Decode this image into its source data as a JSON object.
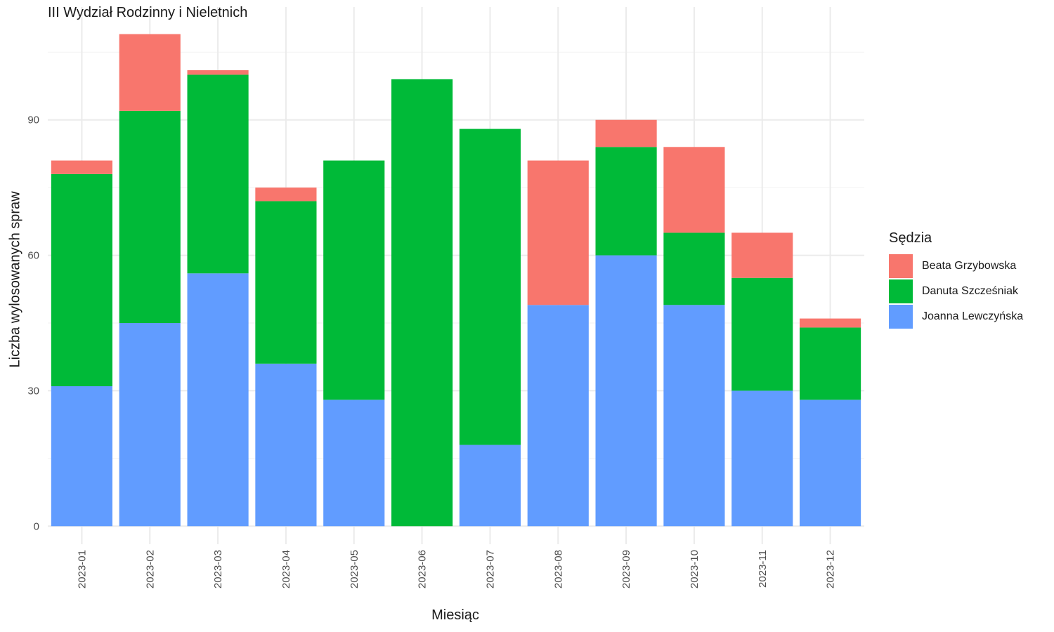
{
  "chart_data": {
    "type": "bar",
    "stacked": true,
    "title": "III Wydział Rodzinny i Nieletnich",
    "xlabel": "Miesiąc",
    "ylabel": "Liczba wylosowanych spraw",
    "categories": [
      "2023-01",
      "2023-02",
      "2023-03",
      "2023-04",
      "2023-05",
      "2023-06",
      "2023-07",
      "2023-08",
      "2023-09",
      "2023-10",
      "2023-11",
      "2023-12"
    ],
    "series": [
      {
        "name": "Joanna Lewczyńska",
        "color": "#619CFF",
        "values": [
          31,
          45,
          56,
          36,
          28,
          0,
          18,
          49,
          60,
          49,
          30,
          28
        ]
      },
      {
        "name": "Danuta Szcześniak",
        "color": "#00BA38",
        "values": [
          47,
          47,
          44,
          36,
          53,
          99,
          70,
          0,
          24,
          16,
          25,
          16
        ]
      },
      {
        "name": "Beata Grzybowska",
        "color": "#F8766D",
        "values": [
          3,
          17,
          1,
          3,
          0,
          0,
          0,
          32,
          6,
          19,
          10,
          2
        ]
      }
    ],
    "yticks": [
      0,
      30,
      60,
      90
    ],
    "ylim": [
      -4,
      115
    ],
    "grid": true,
    "legend": {
      "title": "Sędzia",
      "position": "right",
      "items": [
        "Beata Grzybowska",
        "Danuta Szcześniak",
        "Joanna Lewczyńska"
      ]
    }
  }
}
